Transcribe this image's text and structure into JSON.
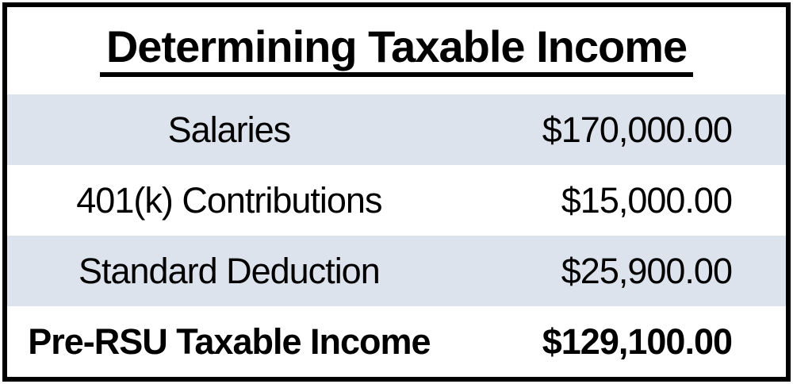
{
  "title": "Determining Taxable Income",
  "chart_data": {
    "type": "table",
    "title": "Determining Taxable Income",
    "rows": [
      {
        "label": "Salaries",
        "value": "$170,000.00",
        "numeric": 170000.0
      },
      {
        "label": "401(k) Contributions",
        "value": "$15,000.00",
        "numeric": 15000.0
      },
      {
        "label": "Standard Deduction",
        "value": "$25,900.00",
        "numeric": 25900.0
      },
      {
        "label": "Pre-RSU Taxable Income",
        "value": "$129,100.00",
        "numeric": 129100.0
      }
    ],
    "layout_hints": {
      "banded_rows": [
        0,
        2
      ],
      "bold_total_row": 3,
      "values_alignment": "right",
      "labels_alignment": "center"
    }
  },
  "colors": {
    "background": "#ffffff",
    "band": "#dde3ec",
    "border": "#000000",
    "text": "#000000"
  }
}
